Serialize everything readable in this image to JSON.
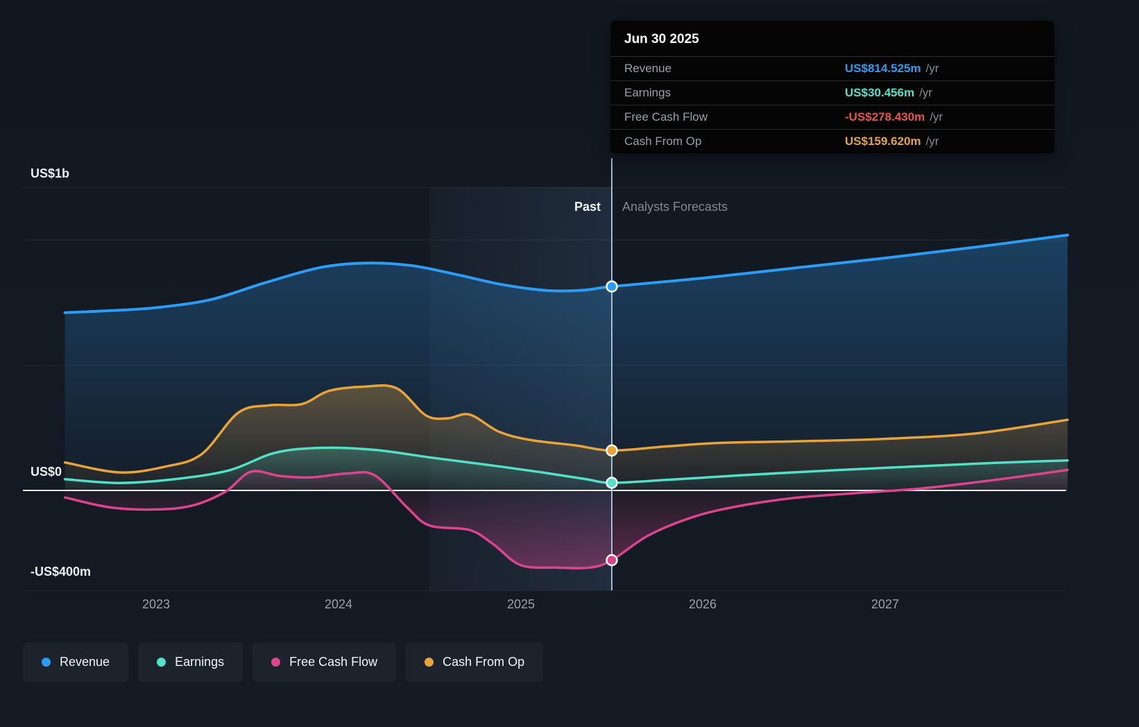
{
  "tooltip": {
    "date": "Jun 30 2025",
    "rows": [
      {
        "label": "Revenue",
        "value": "US$814.525m",
        "unit": "/yr",
        "color": "#2d9cf4"
      },
      {
        "label": "Earnings",
        "value": "US$30.456m",
        "unit": "/yr",
        "color": "#52e0c8"
      },
      {
        "label": "Free Cash Flow",
        "value": "-US$278.430m",
        "unit": "/yr",
        "color": "#e8544c"
      },
      {
        "label": "Cash From Op",
        "value": "US$159.620m",
        "unit": "/yr",
        "color": "#e8a33d"
      }
    ]
  },
  "axes": {
    "y_labels": [
      "US$1b",
      "US$0",
      "-US$400m"
    ],
    "x_labels": [
      "2023",
      "2024",
      "2025",
      "2026",
      "2027"
    ]
  },
  "annotations": {
    "past": "Past",
    "forecast": "Analysts Forecasts"
  },
  "legend": [
    {
      "label": "Revenue",
      "color": "#2d9cf4"
    },
    {
      "label": "Earnings",
      "color": "#52e0c8"
    },
    {
      "label": "Free Cash Flow",
      "color": "#dd4490"
    },
    {
      "label": "Cash From Op",
      "color": "#e8a33d"
    }
  ],
  "chart_data": {
    "type": "line",
    "unit": "US$ millions per year",
    "title": "",
    "x_domain": [
      2022.5,
      2028
    ],
    "ylim": [
      -420,
      1250
    ],
    "divider_x": 2025.5,
    "divider_date": "Jun 30 2025",
    "gridline_values_m": [
      1210,
      1000,
      500,
      -400
    ],
    "zero_value": 0,
    "legend_position": "bottom",
    "series": [
      {
        "name": "Revenue",
        "color": "#2d9cf4",
        "marker_value": 814.525,
        "points": [
          [
            2022.5,
            710
          ],
          [
            2022.75,
            718
          ],
          [
            2023,
            730
          ],
          [
            2023.3,
            762
          ],
          [
            2023.6,
            830
          ],
          [
            2023.9,
            890
          ],
          [
            2024.15,
            908
          ],
          [
            2024.4,
            898
          ],
          [
            2024.65,
            862
          ],
          [
            2024.9,
            822
          ],
          [
            2025.15,
            798
          ],
          [
            2025.35,
            800
          ],
          [
            2025.5,
            814.5
          ],
          [
            2026,
            848
          ],
          [
            2026.5,
            888
          ],
          [
            2027,
            928
          ],
          [
            2027.5,
            972
          ],
          [
            2028,
            1020
          ]
        ]
      },
      {
        "name": "Earnings",
        "color": "#52e0c8",
        "marker_value": 30.456,
        "points": [
          [
            2022.5,
            45
          ],
          [
            2022.8,
            30
          ],
          [
            2023.1,
            45
          ],
          [
            2023.4,
            80
          ],
          [
            2023.65,
            150
          ],
          [
            2023.9,
            170
          ],
          [
            2024.2,
            162
          ],
          [
            2024.5,
            132
          ],
          [
            2024.8,
            104
          ],
          [
            2025.1,
            74
          ],
          [
            2025.35,
            46
          ],
          [
            2025.5,
            30.5
          ],
          [
            2025.8,
            42
          ],
          [
            2026.2,
            60
          ],
          [
            2026.7,
            80
          ],
          [
            2027.2,
            97
          ],
          [
            2027.6,
            110
          ],
          [
            2028,
            120
          ]
        ]
      },
      {
        "name": "Free Cash Flow",
        "color": "#dd4490",
        "marker_value": -278.43,
        "points": [
          [
            2022.5,
            -28
          ],
          [
            2022.75,
            -68
          ],
          [
            2023,
            -76
          ],
          [
            2023.2,
            -60
          ],
          [
            2023.38,
            -5
          ],
          [
            2023.52,
            75
          ],
          [
            2023.68,
            58
          ],
          [
            2023.85,
            52
          ],
          [
            2024.05,
            68
          ],
          [
            2024.2,
            60
          ],
          [
            2024.38,
            -70
          ],
          [
            2024.5,
            -140
          ],
          [
            2024.72,
            -158
          ],
          [
            2024.85,
            -215
          ],
          [
            2025,
            -298
          ],
          [
            2025.2,
            -308
          ],
          [
            2025.38,
            -308
          ],
          [
            2025.5,
            -278.43
          ],
          [
            2025.7,
            -180
          ],
          [
            2025.95,
            -105
          ],
          [
            2026.2,
            -62
          ],
          [
            2026.5,
            -30
          ],
          [
            2026.85,
            -10
          ],
          [
            2027.2,
            8
          ],
          [
            2027.6,
            42
          ],
          [
            2028,
            82
          ]
        ]
      },
      {
        "name": "Cash From Op",
        "color": "#e8a33d",
        "marker_value": 159.62,
        "points": [
          [
            2022.5,
            112
          ],
          [
            2022.8,
            72
          ],
          [
            2023.05,
            95
          ],
          [
            2023.25,
            145
          ],
          [
            2023.45,
            310
          ],
          [
            2023.62,
            340
          ],
          [
            2023.8,
            345
          ],
          [
            2023.95,
            398
          ],
          [
            2024.15,
            415
          ],
          [
            2024.32,
            408
          ],
          [
            2024.48,
            300
          ],
          [
            2024.6,
            288
          ],
          [
            2024.72,
            303
          ],
          [
            2024.88,
            235
          ],
          [
            2025.05,
            202
          ],
          [
            2025.3,
            180
          ],
          [
            2025.5,
            159.6
          ],
          [
            2025.8,
            176
          ],
          [
            2026.1,
            190
          ],
          [
            2026.5,
            196
          ],
          [
            2027,
            206
          ],
          [
            2027.5,
            228
          ],
          [
            2028,
            282
          ]
        ]
      }
    ]
  }
}
